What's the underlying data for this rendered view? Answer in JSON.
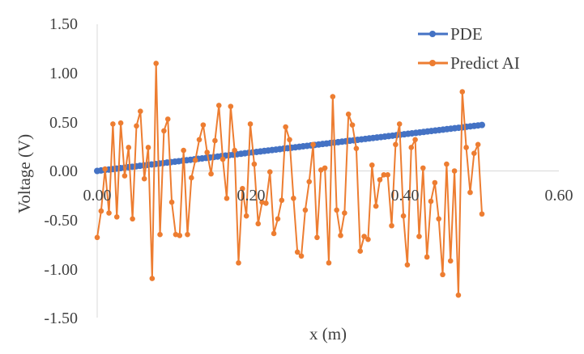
{
  "chart_data": {
    "type": "line",
    "xlabel": "x (m)",
    "ylabel": "Voltage (V)",
    "xlim": [
      0,
      0.6
    ],
    "ylim": [
      -1.5,
      1.5
    ],
    "x_ticks": [
      "0.00",
      "0.20",
      "0.40",
      "0.60"
    ],
    "y_ticks": [
      "1.50",
      "1.00",
      "0.50",
      "0.00",
      "-0.50",
      "-1.00",
      "-1.50"
    ],
    "grid": false,
    "legend_position": "top-right",
    "series": [
      {
        "name": "PDE",
        "color": "#4472C4",
        "marker": "circle",
        "x_start": 0.0,
        "x_end": 0.5,
        "points": 100,
        "y_start": 0.0,
        "y_end": 0.47
      },
      {
        "name": "Predict AI",
        "color": "#ED7D31",
        "marker": "circle",
        "x_start": 0.0,
        "x_end": 0.5,
        "values": [
          -0.68,
          -0.41,
          0.02,
          -0.43,
          0.48,
          -0.47,
          0.49,
          -0.05,
          0.24,
          -0.49,
          0.46,
          0.61,
          -0.08,
          0.24,
          -1.1,
          1.1,
          -0.65,
          0.41,
          0.53,
          -0.32,
          -0.65,
          -0.66,
          0.21,
          -0.65,
          -0.07,
          0.11,
          0.32,
          0.47,
          0.19,
          -0.03,
          0.31,
          0.67,
          0.12,
          -0.28,
          0.66,
          0.21,
          -0.94,
          -0.18,
          -0.46,
          0.48,
          0.07,
          -0.54,
          -0.32,
          -0.33,
          -0.01,
          -0.64,
          -0.49,
          -0.3,
          0.45,
          0.32,
          -0.28,
          -0.83,
          -0.87,
          -0.4,
          -0.11,
          0.27,
          -0.68,
          0.01,
          0.03,
          -0.94,
          0.76,
          -0.4,
          -0.66,
          -0.43,
          0.58,
          0.47,
          0.23,
          -0.82,
          -0.67,
          -0.7,
          0.06,
          -0.36,
          -0.09,
          -0.04,
          -0.04,
          -0.56,
          0.27,
          0.48,
          -0.46,
          -0.96,
          0.24,
          0.32,
          -0.67,
          0.03,
          -0.88,
          -0.31,
          -0.12,
          -0.49,
          -1.06,
          0.07,
          -0.92,
          0.0,
          -1.27,
          0.81,
          0.24,
          -0.22,
          0.18,
          0.27,
          -0.44
        ]
      }
    ]
  }
}
